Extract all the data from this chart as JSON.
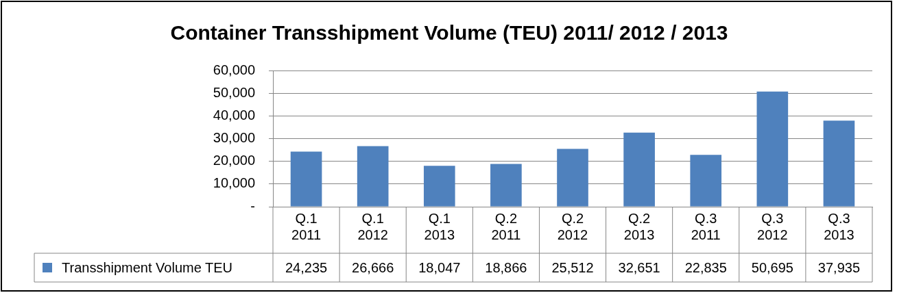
{
  "chart_data": {
    "type": "bar",
    "title": "Container Transshipment Volume (TEU) 2011/ 2012 / 2013",
    "categories": [
      "Q.1 2011",
      "Q.1 2012",
      "Q.1 2013",
      "Q.2 2011",
      "Q.2 2012",
      "Q.2 2013",
      "Q.3 2011",
      "Q.3 2012",
      "Q.3 2013"
    ],
    "series": [
      {
        "name": "Transshipment Volume TEU",
        "color": "#4f81bd",
        "values": [
          24235,
          26666,
          18047,
          18866,
          25512,
          32651,
          22835,
          50695,
          37935
        ],
        "value_labels": [
          "24,235",
          "26,666",
          "18,047",
          "18,866",
          "25,512",
          "32,651",
          "22,835",
          "50,695",
          "37,935"
        ]
      }
    ],
    "ylim": [
      0,
      60000
    ],
    "yticks": [
      {
        "value": 0,
        "label": "-"
      },
      {
        "value": 10000,
        "label": "10,000"
      },
      {
        "value": 20000,
        "label": "20,000"
      },
      {
        "value": 30000,
        "label": "30,000"
      },
      {
        "value": 40000,
        "label": "40,000"
      },
      {
        "value": 50000,
        "label": "50,000"
      },
      {
        "value": 60000,
        "label": "60,000"
      }
    ],
    "grid": "y",
    "legend": "bottom"
  }
}
